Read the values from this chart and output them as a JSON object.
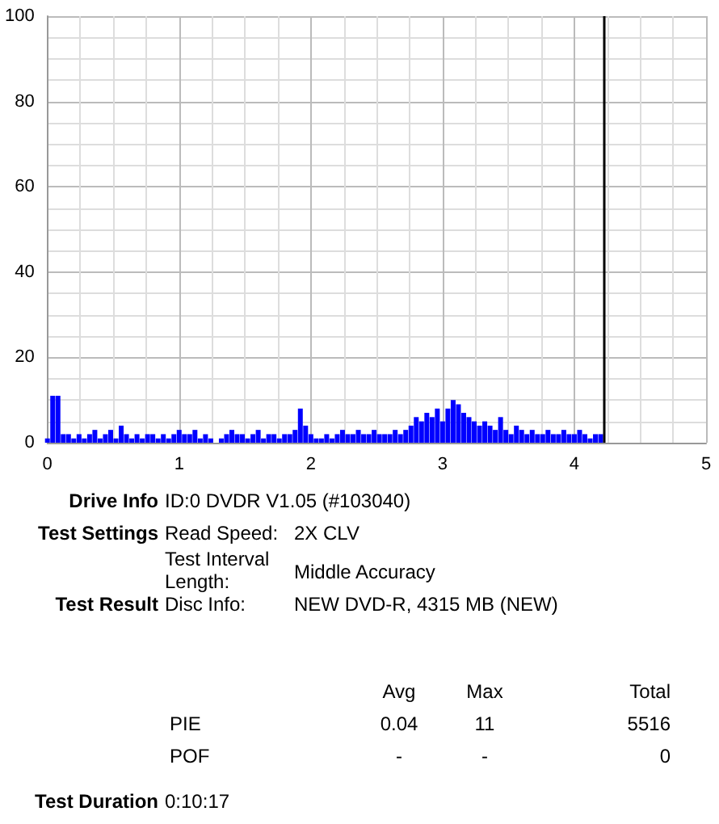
{
  "chart_data": {
    "type": "bar",
    "color": "#0000ff",
    "x": [
      0,
      0.04,
      0.08,
      0.12,
      0.16,
      0.2,
      0.24,
      0.28,
      0.32,
      0.36,
      0.4,
      0.44,
      0.48,
      0.52,
      0.56,
      0.6,
      0.64,
      0.68,
      0.72,
      0.76,
      0.8,
      0.84,
      0.88,
      0.92,
      0.96,
      1.0,
      1.04,
      1.08,
      1.12,
      1.16,
      1.2,
      1.24,
      1.28,
      1.32,
      1.36,
      1.4,
      1.44,
      1.48,
      1.52,
      1.56,
      1.6,
      1.64,
      1.68,
      1.72,
      1.76,
      1.8,
      1.84,
      1.88,
      1.92,
      1.96,
      2.0,
      2.04,
      2.08,
      2.12,
      2.16,
      2.2,
      2.24,
      2.28,
      2.32,
      2.36,
      2.4,
      2.44,
      2.48,
      2.52,
      2.56,
      2.6,
      2.64,
      2.68,
      2.72,
      2.76,
      2.8,
      2.84,
      2.88,
      2.92,
      2.96,
      3.0,
      3.04,
      3.08,
      3.12,
      3.16,
      3.2,
      3.24,
      3.28,
      3.32,
      3.36,
      3.4,
      3.44,
      3.48,
      3.52,
      3.56,
      3.6,
      3.64,
      3.68,
      3.72,
      3.76,
      3.8,
      3.84,
      3.88,
      3.92,
      3.96,
      4.0,
      4.04,
      4.08,
      4.12,
      4.16,
      4.2
    ],
    "values": [
      1,
      11,
      11,
      2,
      2,
      1,
      2,
      1,
      2,
      3,
      1,
      2,
      3,
      1,
      4,
      2,
      1,
      2,
      1,
      2,
      2,
      1,
      2,
      1,
      2,
      3,
      2,
      2,
      3,
      1,
      2,
      1,
      0,
      1,
      2,
      3,
      2,
      2,
      1,
      2,
      3,
      1,
      2,
      2,
      1,
      2,
      2,
      3,
      8,
      4,
      2,
      1,
      1,
      2,
      1,
      2,
      3,
      2,
      2,
      3,
      2,
      2,
      3,
      2,
      2,
      2,
      3,
      2,
      3,
      4,
      6,
      5,
      7,
      6,
      8,
      5,
      8,
      10,
      9,
      7,
      6,
      5,
      4,
      5,
      4,
      3,
      6,
      3,
      2,
      4,
      3,
      2,
      3,
      2,
      2,
      3,
      2,
      2,
      3,
      2,
      2,
      3,
      2,
      1,
      2,
      2
    ],
    "xlim": [
      0,
      5
    ],
    "xticks": [
      0,
      1,
      2,
      3,
      4,
      5
    ],
    "ylim": [
      0,
      100
    ],
    "yticks": [
      0,
      20,
      40,
      60,
      80,
      100
    ],
    "grid": true,
    "ref_lines": [
      {
        "axis": "x",
        "value": 4.23,
        "color": "#000000"
      }
    ],
    "annotations": [
      "Drive Info",
      "ID:0 DVDR V1.05 (#103040)",
      "Test Settings",
      "Read Speed:",
      "2X CLV",
      "Test Interval Length:",
      "Middle Accuracy",
      "Test Result",
      "Disc Info:",
      "NEW DVD-R, 4315 MB (NEW)",
      "Avg",
      "Max",
      "Total",
      "PIE",
      "0.04",
      "11",
      "5516",
      "POF",
      "-",
      "-",
      "0",
      "Test Duration",
      "0:10:17"
    ]
  }
}
